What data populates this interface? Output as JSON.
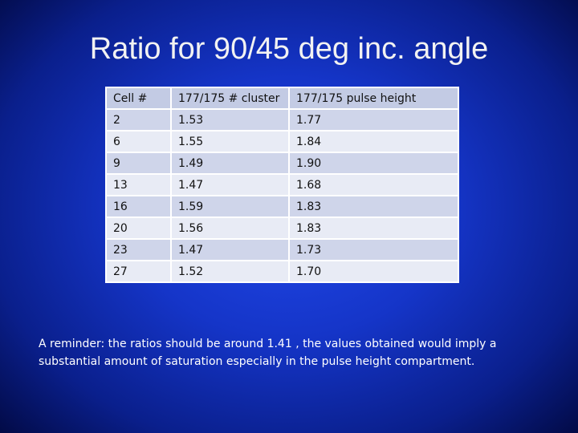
{
  "title": "Ratio for 90/45 deg inc. angle",
  "table": {
    "header": [
      "Cell #",
      "177/175 # cluster",
      "177/175 pulse height"
    ],
    "rows": [
      [
        "2",
        "1.53",
        "1.77"
      ],
      [
        "6",
        "1.55",
        "1.84"
      ],
      [
        "9",
        "1.49",
        "1.90"
      ],
      [
        "13",
        "1.47",
        "1.68"
      ],
      [
        "16",
        "1.59",
        "1.83"
      ],
      [
        "20",
        "1.56",
        "1.83"
      ],
      [
        "23",
        "1.47",
        "1.73"
      ],
      [
        "27",
        "1.52",
        "1.70"
      ]
    ]
  },
  "note": "A reminder: the ratios should be around 1.41 , the values obtained would imply a substantial amount of saturation especially in the pulse height compartment."
}
